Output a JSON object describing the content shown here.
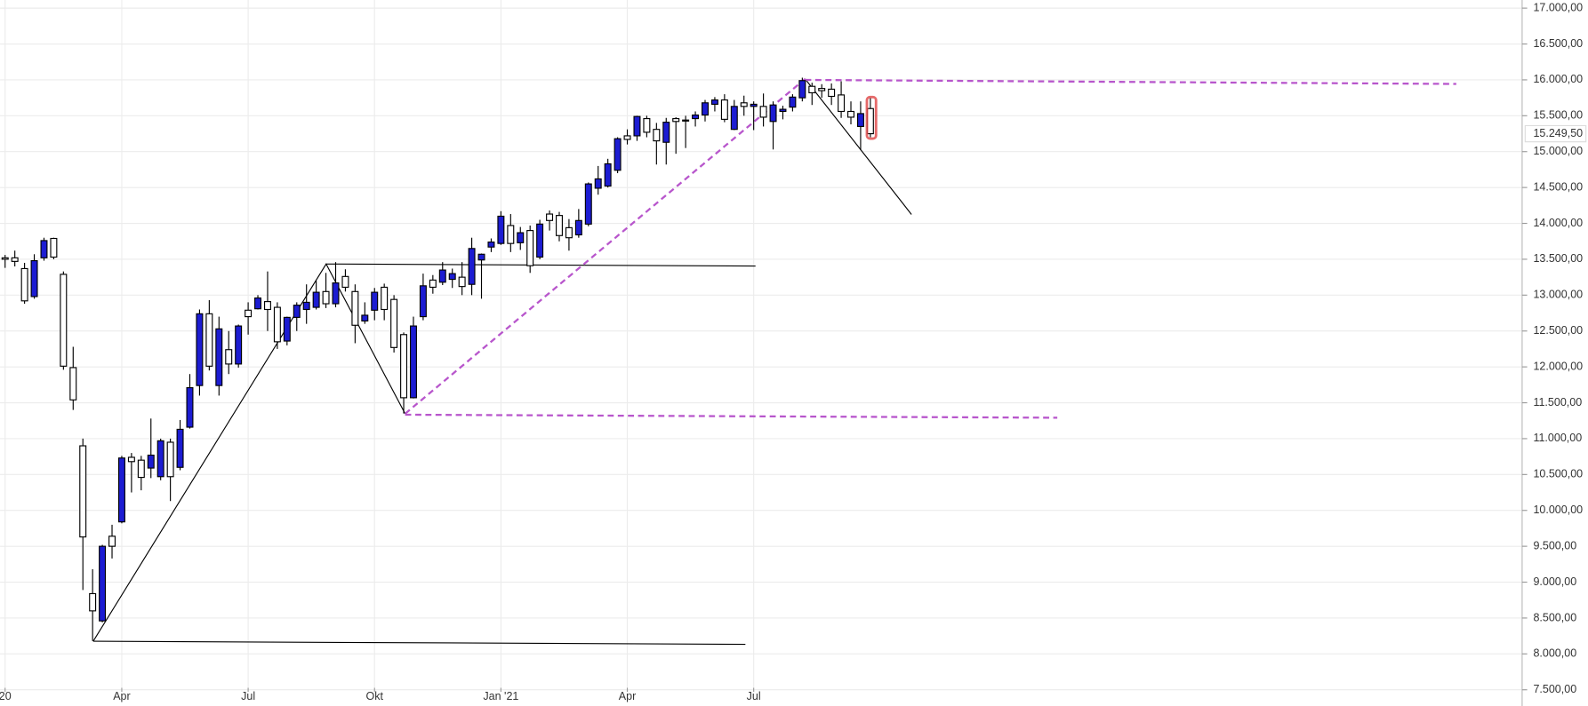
{
  "chart_data": {
    "type": "candlestick",
    "categories": [
      "20",
      null,
      null,
      null,
      null,
      null,
      null,
      null,
      null,
      null,
      null,
      null,
      "Apr",
      null,
      null,
      null,
      null,
      null,
      null,
      null,
      null,
      null,
      null,
      null,
      null,
      "Jul",
      null,
      null,
      null,
      null,
      null,
      null,
      null,
      null,
      null,
      null,
      null,
      null,
      "Okt",
      null,
      null,
      null,
      null,
      null,
      null,
      null,
      null,
      null,
      null,
      null,
      null,
      "Jan '21",
      null,
      null,
      null,
      null,
      null,
      null,
      null,
      null,
      null,
      null,
      null,
      null,
      "Apr",
      null,
      null,
      null,
      null,
      null,
      null,
      null,
      null,
      null,
      null,
      null,
      null,
      "Jul",
      null,
      null,
      null,
      null,
      null,
      null,
      null,
      null,
      null,
      null,
      null,
      null
    ],
    "open": [
      13520,
      13520,
      13370,
      12980,
      13520,
      13790,
      13290,
      11990,
      10900,
      8840,
      8460,
      9640,
      9840,
      10740,
      10700,
      10590,
      10470,
      10950,
      10600,
      11160,
      11740,
      12740,
      11740,
      12240,
      12040,
      12790,
      12810,
      12910,
      12830,
      12360,
      12690,
      12800,
      12830,
      13050,
      12880,
      13260,
      13050,
      12640,
      12790,
      13110,
      12940,
      12450,
      11570,
      12700,
      13210,
      13180,
      13220,
      13250,
      13150,
      13490,
      13670,
      13720,
      13970,
      13730,
      13900,
      13530,
      14130,
      14110,
      13940,
      13840,
      13990,
      14490,
      14520,
      14740,
      15220,
      15220,
      15460,
      15310,
      15130,
      15460,
      15440,
      15460,
      15510,
      15660,
      15720,
      15310,
      15680,
      15630,
      15630,
      15420,
      15560,
      15620,
      15750,
      15910,
      15880,
      15870,
      15790,
      15560,
      15350,
      15600
    ],
    "high": [
      13560,
      13620,
      13450,
      13570,
      13800,
      13800,
      13330,
      12280,
      11000,
      9180,
      9520,
      9800,
      10760,
      10800,
      10760,
      11280,
      11000,
      11000,
      11260,
      11900,
      12800,
      12930,
      12700,
      12500,
      12590,
      12900,
      13000,
      13330,
      12900,
      12700,
      12900,
      13150,
      13200,
      13310,
      13460,
      13360,
      13150,
      12900,
      13100,
      13160,
      13000,
      12480,
      12700,
      13300,
      13280,
      13460,
      13370,
      13460,
      13800,
      13580,
      13790,
      14170,
      14130,
      13950,
      13970,
      14050,
      14180,
      14160,
      14060,
      14200,
      14570,
      14800,
      14900,
      15200,
      15310,
      15500,
      15500,
      15400,
      15470,
      15480,
      15500,
      15560,
      15720,
      15760,
      15800,
      15720,
      15780,
      15700,
      15810,
      15700,
      15640,
      15800,
      16030,
      15960,
      15940,
      15950,
      15980,
      15700,
      15700,
      15750
    ],
    "low": [
      13380,
      13400,
      12880,
      12950,
      13480,
      13500,
      11960,
      11400,
      8890,
      8180,
      8440,
      9330,
      9820,
      10250,
      10280,
      10450,
      10420,
      10130,
      10560,
      11140,
      11600,
      11950,
      11600,
      11900,
      11990,
      12450,
      12800,
      12500,
      12250,
      12300,
      12500,
      12600,
      12800,
      12820,
      12830,
      13050,
      12330,
      12600,
      12650,
      12650,
      12200,
      11350,
      11560,
      12650,
      13020,
      13140,
      13100,
      13000,
      13000,
      12950,
      13600,
      13700,
      13600,
      13630,
      13310,
      13500,
      13900,
      13750,
      13620,
      13800,
      13960,
      14400,
      14500,
      14700,
      15100,
      15150,
      15200,
      14820,
      14820,
      14970,
      15050,
      15350,
      15420,
      15560,
      15410,
      15300,
      15500,
      15300,
      15350,
      15030,
      15450,
      15560,
      15700,
      15650,
      15750,
      15650,
      15470,
      15380,
      15020,
      15200
    ],
    "close": [
      13500,
      13470,
      12920,
      13480,
      13760,
      13530,
      12010,
      11540,
      9630,
      8600,
      9500,
      9500,
      10730,
      10680,
      10460,
      10770,
      10970,
      10470,
      11130,
      11710,
      12740,
      12010,
      12530,
      12040,
      12570,
      12700,
      12960,
      12800,
      12350,
      12690,
      12860,
      12900,
      13040,
      12880,
      13170,
      13110,
      12580,
      12720,
      13040,
      12800,
      12270,
      11570,
      12570,
      13130,
      13110,
      13350,
      13300,
      13120,
      13650,
      13570,
      13740,
      14100,
      13720,
      13870,
      13410,
      13990,
      14040,
      13830,
      13800,
      14040,
      14550,
      14620,
      14830,
      15180,
      15170,
      15490,
      15270,
      15150,
      15410,
      15420,
      15430,
      15510,
      15680,
      15720,
      15450,
      15630,
      15630,
      15660,
      15480,
      15650,
      15590,
      15760,
      15990,
      15820,
      15850,
      15770,
      15560,
      15480,
      15530,
      15249.5
    ],
    "up_color": "#1c1cd2",
    "down_color": "#ffffff",
    "ylim": [
      7274,
      17113
    ],
    "yticks": [
      {
        "value": 7500,
        "label": "7.500,00"
      },
      {
        "value": 8000,
        "label": "8.000,00"
      },
      {
        "value": 8500,
        "label": "8.500,00"
      },
      {
        "value": 9000,
        "label": "9.000,00"
      },
      {
        "value": 9500,
        "label": "9.500,00"
      },
      {
        "value": 10000,
        "label": "10.000,00"
      },
      {
        "value": 10500,
        "label": "10.500,00"
      },
      {
        "value": 11000,
        "label": "11.000,00"
      },
      {
        "value": 11500,
        "label": "11.500,00"
      },
      {
        "value": 12000,
        "label": "12.000,00"
      },
      {
        "value": 12500,
        "label": "12.500,00"
      },
      {
        "value": 13000,
        "label": "13.000,00"
      },
      {
        "value": 13500,
        "label": "13.500,00"
      },
      {
        "value": 14000,
        "label": "14.000,00"
      },
      {
        "value": 14500,
        "label": "14.500,00"
      },
      {
        "value": 15000,
        "label": "15.000,00"
      },
      {
        "value": 15500,
        "label": "15.500,00"
      },
      {
        "value": 16000,
        "label": "16.000,00"
      },
      {
        "value": 16500,
        "label": "16.500,00"
      },
      {
        "value": 17000,
        "label": "17.000,00"
      }
    ],
    "grid": true,
    "last_price": {
      "value": 15249.5,
      "label": "15.249,50"
    }
  }
}
